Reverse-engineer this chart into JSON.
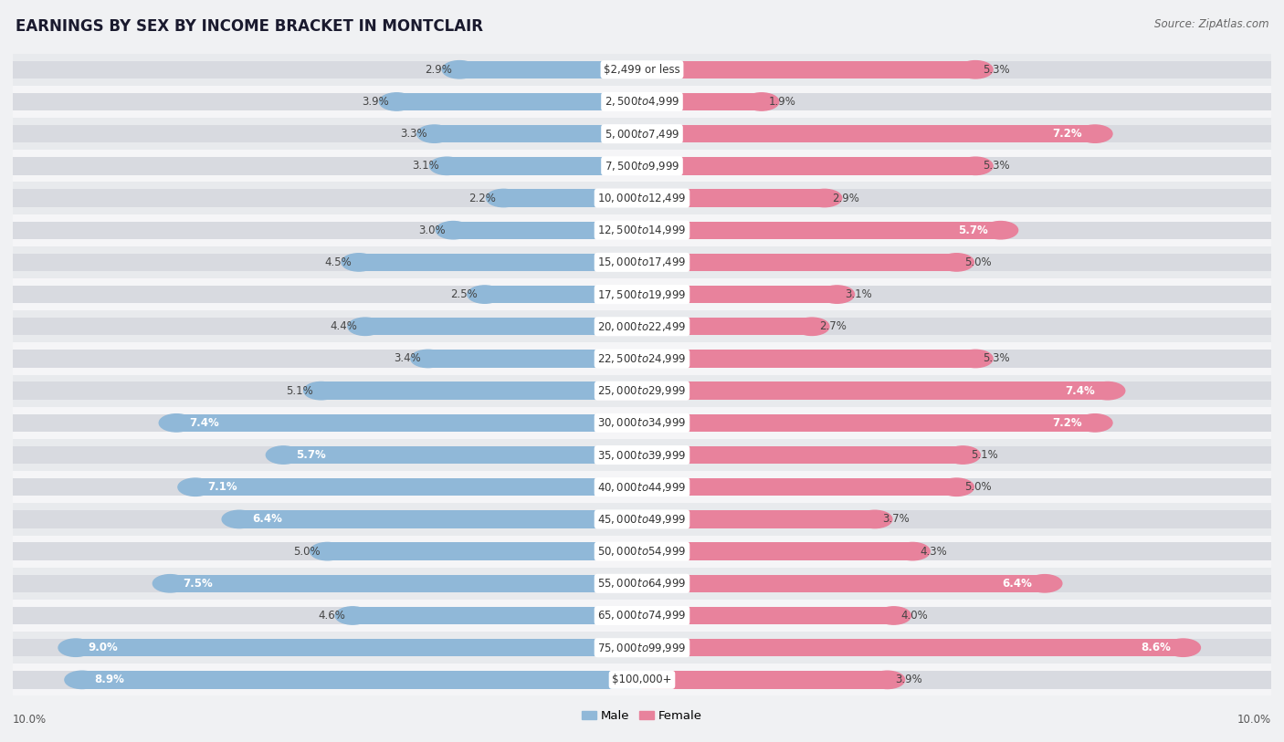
{
  "title": "EARNINGS BY SEX BY INCOME BRACKET IN MONTCLAIR",
  "source": "Source: ZipAtlas.com",
  "categories": [
    "$2,499 or less",
    "$2,500 to $4,999",
    "$5,000 to $7,499",
    "$7,500 to $9,999",
    "$10,000 to $12,499",
    "$12,500 to $14,999",
    "$15,000 to $17,499",
    "$17,500 to $19,999",
    "$20,000 to $22,499",
    "$22,500 to $24,999",
    "$25,000 to $29,999",
    "$30,000 to $34,999",
    "$35,000 to $39,999",
    "$40,000 to $44,999",
    "$45,000 to $49,999",
    "$50,000 to $54,999",
    "$55,000 to $64,999",
    "$65,000 to $74,999",
    "$75,000 to $99,999",
    "$100,000+"
  ],
  "male_values": [
    2.9,
    3.9,
    3.3,
    3.1,
    2.2,
    3.0,
    4.5,
    2.5,
    4.4,
    3.4,
    5.1,
    7.4,
    5.7,
    7.1,
    6.4,
    5.0,
    7.5,
    4.6,
    9.0,
    8.9
  ],
  "female_values": [
    5.3,
    1.9,
    7.2,
    5.3,
    2.9,
    5.7,
    5.0,
    3.1,
    2.7,
    5.3,
    7.4,
    7.2,
    5.1,
    5.0,
    3.7,
    4.3,
    6.4,
    4.0,
    8.6,
    3.9
  ],
  "male_color": "#90b8d8",
  "female_color": "#e8829c",
  "row_color_odd": "#e8eaed",
  "row_color_even": "#f5f5f7",
  "bg_color": "#f0f1f3",
  "bar_bg_color": "#d8dae0",
  "xlim": 10.0,
  "label_fontsize": 8.5,
  "cat_fontsize": 8.5,
  "title_fontsize": 12,
  "source_fontsize": 8.5,
  "legend_male": "Male",
  "legend_female": "Female",
  "inside_label_threshold": 5.5
}
